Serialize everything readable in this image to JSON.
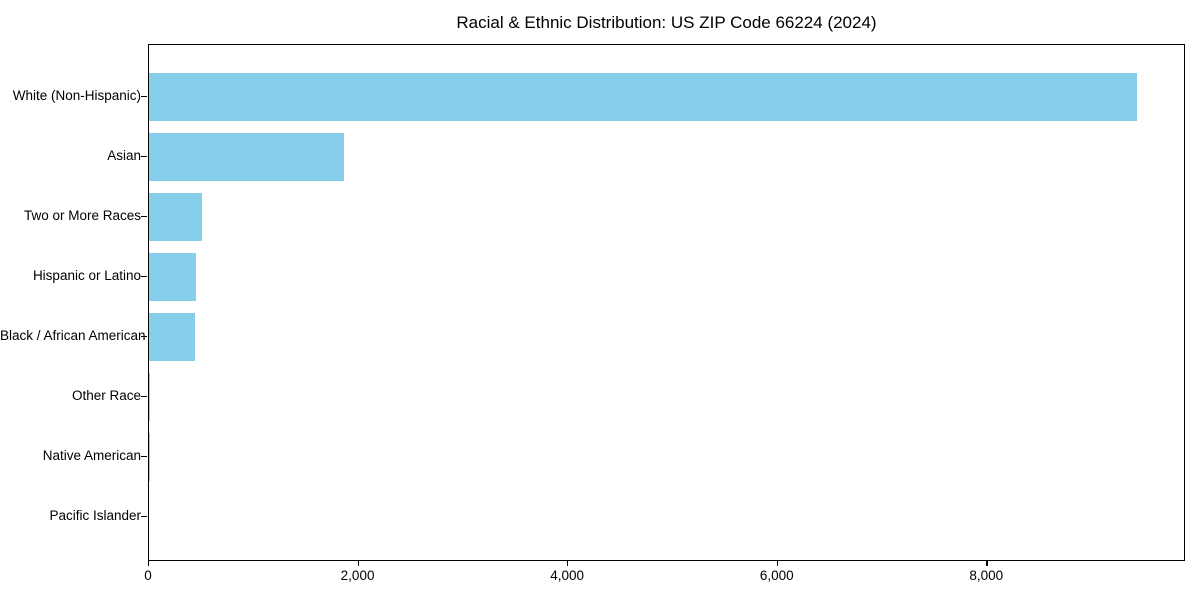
{
  "title": "Racial & Ethnic Distribution: US ZIP Code 66224 (2024)",
  "chart_data": {
    "type": "bar",
    "orientation": "horizontal",
    "title": "Racial & Ethnic Distribution: US ZIP Code 66224 (2024)",
    "categories": [
      "White (Non-Hispanic)",
      "Asian",
      "Two or More Races",
      "Hispanic or Latino",
      "Black / African American",
      "Other Race",
      "Native American",
      "Pacific Islander"
    ],
    "values": [
      9430,
      1860,
      508,
      445,
      435,
      12,
      4,
      0
    ],
    "xlabel": "",
    "ylabel": "",
    "xlim": [
      0,
      9896
    ],
    "xticks": [
      0,
      2000,
      4000,
      6000,
      8000
    ],
    "xtick_labels": [
      "0",
      "2,000",
      "4,000",
      "6,000",
      "8,000"
    ],
    "bar_color": "#87CEEB",
    "background_color": "#FFFFFF",
    "spine_color": "#000000",
    "text_color": "#000000",
    "grid": false,
    "legend": null
  }
}
